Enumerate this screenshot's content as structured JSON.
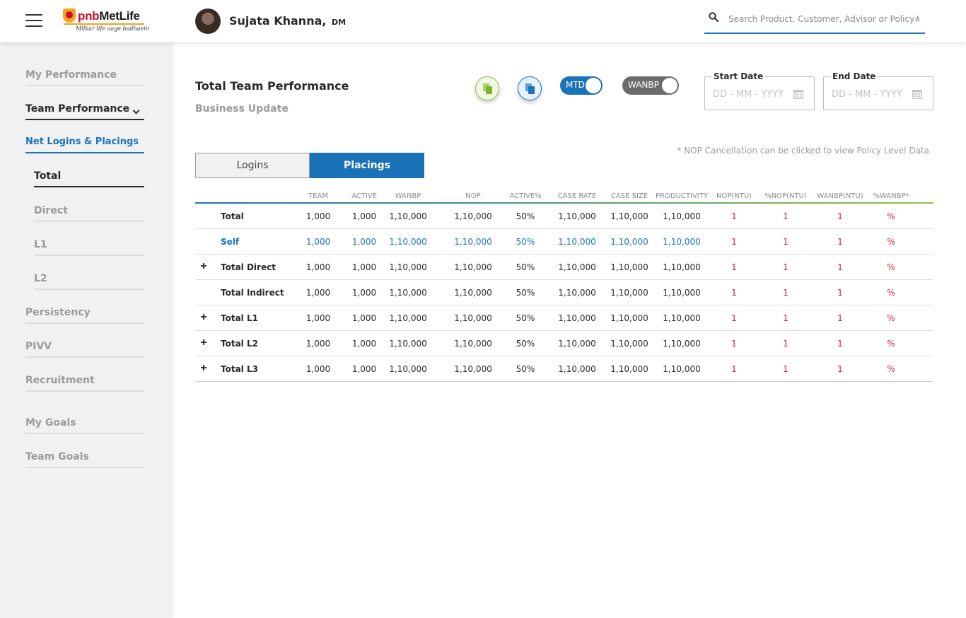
{
  "header": {
    "logo_brand": "pnb",
    "logo_name": "MetLife",
    "logo_tagline": "Milkar life aage badhaein",
    "user_name": "Sujata Khanna,",
    "user_role": "DM",
    "search_placeholder": "Search Product, Customer, Advisor or Policy#"
  },
  "sidebar": {
    "items": [
      {
        "label": "My Performance"
      },
      {
        "label": "Team Performance"
      },
      {
        "label": "Net Logins & Placings"
      },
      {
        "label": "Total"
      },
      {
        "label": "Direct"
      },
      {
        "label": "L1"
      },
      {
        "label": "L2"
      },
      {
        "label": "Persistency"
      },
      {
        "label": "PIVV"
      },
      {
        "label": "Recruitment"
      },
      {
        "label": "My Goals"
      },
      {
        "label": "Team Goals"
      }
    ]
  },
  "main": {
    "title": "Total Team Performance",
    "subtitle": "Business Update",
    "toggles": {
      "mtd": "MTD",
      "wanbp": "WANBP"
    },
    "start_date": {
      "label": "Start Date",
      "placeholder": "DD - MM - YYYY"
    },
    "end_date": {
      "label": "End Date",
      "placeholder": "DD - MM - YYYY"
    },
    "note": "* NOP Cancellation can be clicked to view Policy Level Data",
    "tabs": [
      {
        "label": "Logins",
        "active": false
      },
      {
        "label": "Placings",
        "active": true
      }
    ]
  },
  "table": {
    "columns": [
      "TEAM",
      "ACTIVE",
      "WANBP",
      "NOP",
      "ACTIVE%",
      "CASE RATE",
      "CASE SIZE",
      "PRODUCTIVITY",
      "NOP(NTU)",
      "%NOP(NTU)",
      "WANBP(NTU)",
      "%WANBP*"
    ],
    "rows": [
      {
        "label": "Total",
        "expandable": false,
        "highlight": false,
        "values": [
          "1,000",
          "1,000",
          "1,10,000",
          "1,10,000",
          "50%",
          "1,10,000",
          "1,10,000",
          "1,10,000",
          "1",
          "1",
          "1",
          "%"
        ]
      },
      {
        "label": "Self",
        "expandable": false,
        "highlight": true,
        "values": [
          "1,000",
          "1,000",
          "1,10,000",
          "1,10,000",
          "50%",
          "1,10,000",
          "1,10,000",
          "1,10,000",
          "1",
          "1",
          "1",
          "%"
        ]
      },
      {
        "label": "Total Direct",
        "expandable": true,
        "highlight": false,
        "values": [
          "1,000",
          "1,000",
          "1,10,000",
          "1,10,000",
          "50%",
          "1,10,000",
          "1,10,000",
          "1,10,000",
          "1",
          "1",
          "1",
          "%"
        ]
      },
      {
        "label": "Total Indirect",
        "expandable": false,
        "highlight": false,
        "values": [
          "1,000",
          "1,000",
          "1,10,000",
          "1,10,000",
          "50%",
          "1,10,000",
          "1,10,000",
          "1,10,000",
          "1",
          "1",
          "1",
          "%"
        ]
      },
      {
        "label": "Total L1",
        "expandable": true,
        "highlight": false,
        "values": [
          "1,000",
          "1,000",
          "1,10,000",
          "1,10,000",
          "50%",
          "1,10,000",
          "1,10,000",
          "1,10,000",
          "1",
          "1",
          "1",
          "%"
        ]
      },
      {
        "label": "Total L2",
        "expandable": true,
        "highlight": false,
        "values": [
          "1,000",
          "1,000",
          "1,10,000",
          "1,10,000",
          "50%",
          "1,10,000",
          "1,10,000",
          "1,10,000",
          "1",
          "1",
          "1",
          "%"
        ]
      },
      {
        "label": "Total L3",
        "expandable": true,
        "highlight": false,
        "values": [
          "1,000",
          "1,000",
          "1,10,000",
          "1,10,000",
          "50%",
          "1,10,000",
          "1,10,000",
          "1,10,000",
          "1",
          "1",
          "1",
          "%"
        ]
      }
    ]
  },
  "colors": {
    "accent": "#1a73b8",
    "green": "#8cc63f",
    "negative": "#d4202c"
  }
}
